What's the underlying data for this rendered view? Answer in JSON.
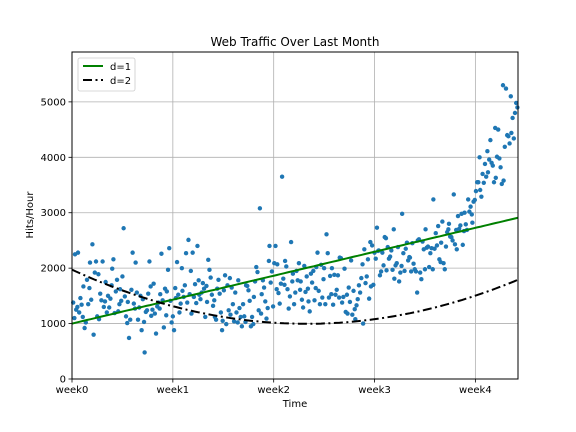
{
  "chart_data": {
    "type": "scatter",
    "title": "Web Traffic Over Last Month",
    "xlabel": "Time",
    "ylabel": "Hits/Hour",
    "xlim": [
      0,
      743
    ],
    "ylim": [
      0,
      5900
    ],
    "grid": true,
    "legend_position": "top-left",
    "x_ticks": [
      {
        "value": 0,
        "label": "week0"
      },
      {
        "value": 168,
        "label": "week1"
      },
      {
        "value": 336,
        "label": "week2"
      },
      {
        "value": 504,
        "label": "week3"
      },
      {
        "value": 672,
        "label": "week4"
      }
    ],
    "y_ticks": [
      {
        "value": 0,
        "label": "0"
      },
      {
        "value": 1000,
        "label": "1000"
      },
      {
        "value": 2000,
        "label": "2000"
      },
      {
        "value": 3000,
        "label": "3000"
      },
      {
        "value": 4000,
        "label": "4000"
      },
      {
        "value": 5000,
        "label": "5000"
      }
    ],
    "scatter_color": "#1f77b4",
    "fits": [
      {
        "name": "d=1",
        "degree": 1,
        "color": "#008000",
        "style": "solid",
        "coefficients": [
          1000,
          2.57
        ]
      },
      {
        "name": "d=2",
        "degree": 2,
        "color": "#000000",
        "style": "dashdot",
        "coefficients": [
          1973,
          -5.0,
          0.0064
        ]
      }
    ],
    "points": [
      [
        2,
        1380
      ],
      [
        4,
        1100
      ],
      [
        5,
        2250
      ],
      [
        7,
        1250
      ],
      [
        9,
        1300
      ],
      [
        10,
        2280
      ],
      [
        12,
        1200
      ],
      [
        14,
        1460
      ],
      [
        16,
        1340
      ],
      [
        18,
        1120
      ],
      [
        19,
        1670
      ],
      [
        21,
        920
      ],
      [
        23,
        1020
      ],
      [
        25,
        1790
      ],
      [
        27,
        1350
      ],
      [
        29,
        1640
      ],
      [
        30,
        2100
      ],
      [
        32,
        1430
      ],
      [
        34,
        2430
      ],
      [
        36,
        800
      ],
      [
        38,
        1920
      ],
      [
        40,
        2120
      ],
      [
        42,
        1130
      ],
      [
        44,
        1890
      ],
      [
        45,
        1080
      ],
      [
        47,
        1540
      ],
      [
        49,
        1420
      ],
      [
        51,
        2120
      ],
      [
        53,
        1300
      ],
      [
        55,
        1400
      ],
      [
        56,
        1750
      ],
      [
        58,
        1200
      ],
      [
        60,
        1500
      ],
      [
        62,
        1290
      ],
      [
        64,
        1450
      ],
      [
        66,
        1690
      ],
      [
        67,
        1990
      ],
      [
        69,
        2160
      ],
      [
        71,
        1190
      ],
      [
        73,
        1580
      ],
      [
        75,
        1790
      ],
      [
        77,
        1220
      ],
      [
        79,
        1350
      ],
      [
        80,
        1620
      ],
      [
        82,
        1410
      ],
      [
        84,
        1850
      ],
      [
        86,
        2720
      ],
      [
        88,
        1490
      ],
      [
        90,
        1130
      ],
      [
        92,
        1010
      ],
      [
        93,
        1390
      ],
      [
        95,
        740
      ],
      [
        97,
        1070
      ],
      [
        99,
        1610
      ],
      [
        101,
        2280
      ],
      [
        103,
        1360
      ],
      [
        105,
        1270
      ],
      [
        106,
        2100
      ],
      [
        108,
        1560
      ],
      [
        110,
        1070
      ],
      [
        112,
        1290
      ],
      [
        114,
        1500
      ],
      [
        116,
        880
      ],
      [
        118,
        1440
      ],
      [
        120,
        1030
      ],
      [
        121,
        480
      ],
      [
        123,
        1210
      ],
      [
        125,
        1240
      ],
      [
        127,
        1540
      ],
      [
        129,
        2120
      ],
      [
        131,
        1670
      ],
      [
        132,
        1140
      ],
      [
        134,
        1250
      ],
      [
        136,
        1720
      ],
      [
        138,
        1180
      ],
      [
        140,
        820
      ],
      [
        142,
        1310
      ],
      [
        144,
        1380
      ],
      [
        146,
        1270
      ],
      [
        147,
        1530
      ],
      [
        149,
        2260
      ],
      [
        151,
        1420
      ],
      [
        153,
        930
      ],
      [
        155,
        1630
      ],
      [
        157,
        1150
      ],
      [
        158,
        1580
      ],
      [
        160,
        1970
      ],
      [
        162,
        2360
      ],
      [
        164,
        1410
      ],
      [
        166,
        1020
      ],
      [
        168,
        1130
      ],
      [
        170,
        880
      ],
      [
        172,
        1640
      ],
      [
        173,
        1460
      ],
      [
        175,
        2110
      ],
      [
        177,
        1520
      ],
      [
        179,
        1200
      ],
      [
        181,
        1360
      ],
      [
        183,
        2000
      ],
      [
        184,
        1590
      ],
      [
        186,
        1480
      ],
      [
        188,
        1690
      ],
      [
        190,
        2270
      ],
      [
        192,
        1380
      ],
      [
        194,
        2510
      ],
      [
        196,
        1530
      ],
      [
        198,
        1950
      ],
      [
        199,
        1180
      ],
      [
        201,
        2280
      ],
      [
        203,
        1480
      ],
      [
        205,
        1710
      ],
      [
        207,
        1370
      ],
      [
        209,
        2400
      ],
      [
        211,
        1780
      ],
      [
        212,
        1520
      ],
      [
        214,
        1440
      ],
      [
        216,
        1560
      ],
      [
        218,
        1730
      ],
      [
        220,
        1630
      ],
      [
        222,
        1120
      ],
      [
        224,
        1680
      ],
      [
        225,
        1390
      ],
      [
        227,
        2150
      ],
      [
        229,
        1970
      ],
      [
        231,
        1830
      ],
      [
        233,
        1520
      ],
      [
        235,
        1320
      ],
      [
        237,
        1420
      ],
      [
        238,
        1120
      ],
      [
        240,
        1070
      ],
      [
        242,
        1630
      ],
      [
        244,
        1790
      ],
      [
        246,
        1540
      ],
      [
        248,
        1200
      ],
      [
        250,
        880
      ],
      [
        251,
        1050
      ],
      [
        253,
        1600
      ],
      [
        255,
        1870
      ],
      [
        257,
        990
      ],
      [
        259,
        1690
      ],
      [
        261,
        1240
      ],
      [
        263,
        1820
      ],
      [
        264,
        1160
      ],
      [
        266,
        1650
      ],
      [
        268,
        1350
      ],
      [
        270,
        1040
      ],
      [
        272,
        1560
      ],
      [
        274,
        1200
      ],
      [
        276,
        1020
      ],
      [
        277,
        1780
      ],
      [
        279,
        1280
      ],
      [
        281,
        1120
      ],
      [
        283,
        950
      ],
      [
        285,
        1350
      ],
      [
        287,
        1130
      ],
      [
        289,
        1030
      ],
      [
        290,
        1690
      ],
      [
        292,
        1680
      ],
      [
        294,
        1600
      ],
      [
        296,
        1410
      ],
      [
        298,
        950
      ],
      [
        300,
        1120
      ],
      [
        302,
        990
      ],
      [
        303,
        1480
      ],
      [
        305,
        1760
      ],
      [
        307,
        2020
      ],
      [
        309,
        1930
      ],
      [
        311,
        1240
      ],
      [
        313,
        3080
      ],
      [
        315,
        1180
      ],
      [
        316,
        1530
      ],
      [
        318,
        1780
      ],
      [
        320,
        1650
      ],
      [
        322,
        1400
      ],
      [
        324,
        1090
      ],
      [
        326,
        1280
      ],
      [
        328,
        2130
      ],
      [
        329,
        2400
      ],
      [
        331,
        1740
      ],
      [
        333,
        1940
      ],
      [
        335,
        1310
      ],
      [
        337,
        2090
      ],
      [
        339,
        2400
      ],
      [
        341,
        1620
      ],
      [
        342,
        2070
      ],
      [
        344,
        1550
      ],
      [
        346,
        1360
      ],
      [
        348,
        1720
      ],
      [
        350,
        3650
      ],
      [
        352,
        1810
      ],
      [
        354,
        1700
      ],
      [
        355,
        2130
      ],
      [
        357,
        2030
      ],
      [
        359,
        1620
      ],
      [
        361,
        1270
      ],
      [
        363,
        1490
      ],
      [
        365,
        2470
      ],
      [
        367,
        1760
      ],
      [
        368,
        1900
      ],
      [
        370,
        1350
      ],
      [
        372,
        1560
      ],
      [
        374,
        1950
      ],
      [
        376,
        1780
      ],
      [
        378,
        2090
      ],
      [
        380,
        1610
      ],
      [
        381,
        1760
      ],
      [
        383,
        1430
      ],
      [
        385,
        1290
      ],
      [
        387,
        2040
      ],
      [
        389,
        1570
      ],
      [
        391,
        1850
      ],
      [
        393,
        1630
      ],
      [
        394,
        1400
      ],
      [
        396,
        1220
      ],
      [
        398,
        1900
      ],
      [
        400,
        1740
      ],
      [
        402,
        1950
      ],
      [
        404,
        1420
      ],
      [
        406,
        1640
      ],
      [
        407,
        2020
      ],
      [
        409,
        2280
      ],
      [
        411,
        1590
      ],
      [
        413,
        1350
      ],
      [
        415,
        2060
      ],
      [
        417,
        1470
      ],
      [
        419,
        1800
      ],
      [
        420,
        2000
      ],
      [
        422,
        1350
      ],
      [
        424,
        2610
      ],
      [
        426,
        2270
      ],
      [
        428,
        1470
      ],
      [
        430,
        1860
      ],
      [
        432,
        1530
      ],
      [
        433,
        2000
      ],
      [
        435,
        1340
      ],
      [
        437,
        1880
      ],
      [
        439,
        1520
      ],
      [
        441,
        1610
      ],
      [
        443,
        1870
      ],
      [
        445,
        1470
      ],
      [
        446,
        2190
      ],
      [
        448,
        2180
      ],
      [
        450,
        1380
      ],
      [
        452,
        1480
      ],
      [
        454,
        1990
      ],
      [
        456,
        1210
      ],
      [
        458,
        1520
      ],
      [
        459,
        1180
      ],
      [
        461,
        1650
      ],
      [
        463,
        1390
      ],
      [
        465,
        2140
      ],
      [
        467,
        1160
      ],
      [
        469,
        1590
      ],
      [
        471,
        1260
      ],
      [
        472,
        1080
      ],
      [
        474,
        1330
      ],
      [
        476,
        1440
      ],
      [
        478,
        1690
      ],
      [
        480,
        1560
      ],
      [
        482,
        1820
      ],
      [
        484,
        2070
      ],
      [
        485,
        1000
      ],
      [
        487,
        2340
      ],
      [
        489,
        1730
      ],
      [
        491,
        1850
      ],
      [
        493,
        2160
      ],
      [
        495,
        1450
      ],
      [
        497,
        2470
      ],
      [
        498,
        1670
      ],
      [
        500,
        2410
      ],
      [
        502,
        1700
      ],
      [
        504,
        2280
      ],
      [
        506,
        2170
      ],
      [
        508,
        2730
      ],
      [
        510,
        2310
      ],
      [
        511,
        2320
      ],
      [
        513,
        1870
      ],
      [
        515,
        1940
      ],
      [
        517,
        2280
      ],
      [
        519,
        2050
      ],
      [
        521,
        2560
      ],
      [
        523,
        2540
      ],
      [
        524,
        1960
      ],
      [
        526,
        2380
      ],
      [
        528,
        2170
      ],
      [
        530,
        2210
      ],
      [
        532,
        2320
      ],
      [
        534,
        1970
      ],
      [
        536,
        2700
      ],
      [
        537,
        1810
      ],
      [
        539,
        2050
      ],
      [
        541,
        2090
      ],
      [
        543,
        2380
      ],
      [
        545,
        1760
      ],
      [
        547,
        1920
      ],
      [
        549,
        2040
      ],
      [
        550,
        2980
      ],
      [
        552,
        2270
      ],
      [
        554,
        1950
      ],
      [
        556,
        2350
      ],
      [
        558,
        2460
      ],
      [
        560,
        2140
      ],
      [
        562,
        2200
      ],
      [
        563,
        2190
      ],
      [
        565,
        1940
      ],
      [
        567,
        2450
      ],
      [
        569,
        2080
      ],
      [
        571,
        1980
      ],
      [
        573,
        1940
      ],
      [
        575,
        1560
      ],
      [
        576,
        2500
      ],
      [
        578,
        2520
      ],
      [
        580,
        1920
      ],
      [
        582,
        1800
      ],
      [
        584,
        2480
      ],
      [
        586,
        2340
      ],
      [
        588,
        1980
      ],
      [
        589,
        2700
      ],
      [
        591,
        2370
      ],
      [
        593,
        2390
      ],
      [
        595,
        2020
      ],
      [
        597,
        2270
      ],
      [
        599,
        2360
      ],
      [
        601,
        1980
      ],
      [
        602,
        3240
      ],
      [
        604,
        2350
      ],
      [
        606,
        2630
      ],
      [
        608,
        2410
      ],
      [
        610,
        2760
      ],
      [
        612,
        2160
      ],
      [
        614,
        2110
      ],
      [
        615,
        2460
      ],
      [
        617,
        2840
      ],
      [
        619,
        2090
      ],
      [
        621,
        1980
      ],
      [
        623,
        2390
      ],
      [
        625,
        2650
      ],
      [
        627,
        2700
      ],
      [
        628,
        2800
      ],
      [
        630,
        2570
      ],
      [
        632,
        2560
      ],
      [
        634,
        2500
      ],
      [
        636,
        3330
      ],
      [
        638,
        2430
      ],
      [
        640,
        2690
      ],
      [
        641,
        2340
      ],
      [
        643,
        2940
      ],
      [
        645,
        2710
      ],
      [
        647,
        2770
      ],
      [
        649,
        2980
      ],
      [
        651,
        2420
      ],
      [
        653,
        2670
      ],
      [
        654,
        3000
      ],
      [
        656,
        2790
      ],
      [
        658,
        2690
      ],
      [
        660,
        3240
      ],
      [
        662,
        3020
      ],
      [
        664,
        3110
      ],
      [
        666,
        2970
      ],
      [
        667,
        2820
      ],
      [
        669,
        3200
      ],
      [
        671,
        3230
      ],
      [
        673,
        3390
      ],
      [
        675,
        3550
      ],
      [
        677,
        3550
      ],
      [
        679,
        4000
      ],
      [
        680,
        3410
      ],
      [
        682,
        3290
      ],
      [
        684,
        3700
      ],
      [
        686,
        3540
      ],
      [
        688,
        3880
      ],
      [
        690,
        3650
      ],
      [
        692,
        4110
      ],
      [
        693,
        3730
      ],
      [
        695,
        3960
      ],
      [
        697,
        4310
      ],
      [
        699,
        3900
      ],
      [
        701,
        3850
      ],
      [
        703,
        3550
      ],
      [
        705,
        4530
      ],
      [
        706,
        3630
      ],
      [
        708,
        4010
      ],
      [
        710,
        4500
      ],
      [
        712,
        3980
      ],
      [
        714,
        3820
      ],
      [
        716,
        3520
      ],
      [
        718,
        5300
      ],
      [
        719,
        3580
      ],
      [
        721,
        4190
      ],
      [
        723,
        5240
      ],
      [
        725,
        4400
      ],
      [
        727,
        4380
      ],
      [
        729,
        4250
      ],
      [
        731,
        5100
      ],
      [
        732,
        4440
      ],
      [
        734,
        4710
      ],
      [
        736,
        4340
      ],
      [
        738,
        4800
      ],
      [
        740,
        4980
      ],
      [
        742,
        4900
      ]
    ]
  }
}
